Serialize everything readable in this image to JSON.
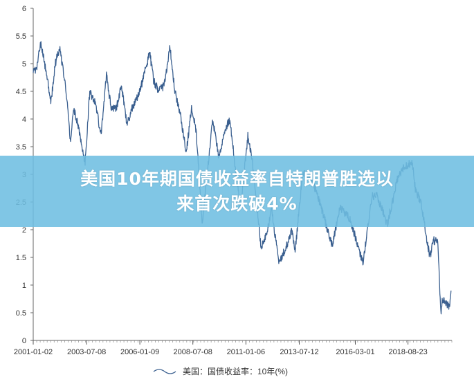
{
  "headline": {
    "line1": "美国10年期国债收益率自特朗普胜选以",
    "line2": "来首次跌破4%"
  },
  "chart_data": {
    "type": "line",
    "title": "",
    "xlabel": "",
    "ylabel": "",
    "ylim": [
      0,
      6
    ],
    "yticks": [
      "0",
      "0.5",
      "1",
      "1.5",
      "2",
      "2.5",
      "3",
      "3.5",
      "4",
      "4.5",
      "5",
      "5.5",
      "6"
    ],
    "xlim": [
      "2001-01-02",
      "2020-09-15"
    ],
    "xticks": [
      "2001-01-02",
      "2003-07-08",
      "2006-01-09",
      "2008-07-08",
      "2011-01-06",
      "2013-07-12",
      "2016-03-01",
      "2018-08-23"
    ],
    "grid": false,
    "legend_position": "bottom",
    "legend": "美国：国债收益率：10年(%)",
    "series": [
      {
        "name": "美国：国债收益率：10年(%)",
        "color": "#3a5f8f",
        "points": [
          [
            "2001-01-02",
            4.9
          ],
          [
            "2001-03-01",
            4.9
          ],
          [
            "2001-05-15",
            5.4
          ],
          [
            "2001-07-01",
            5.1
          ],
          [
            "2001-09-20",
            4.6
          ],
          [
            "2001-11-05",
            4.3
          ],
          [
            "2002-01-15",
            5.0
          ],
          [
            "2002-04-01",
            5.3
          ],
          [
            "2002-06-01",
            4.9
          ],
          [
            "2002-08-01",
            4.4
          ],
          [
            "2002-10-01",
            3.6
          ],
          [
            "2002-12-01",
            4.2
          ],
          [
            "2003-03-01",
            3.8
          ],
          [
            "2003-06-13",
            3.2
          ],
          [
            "2003-09-01",
            4.5
          ],
          [
            "2003-12-01",
            4.3
          ],
          [
            "2004-03-15",
            3.7
          ],
          [
            "2004-06-14",
            4.8
          ],
          [
            "2004-09-01",
            4.2
          ],
          [
            "2004-12-01",
            4.2
          ],
          [
            "2005-03-01",
            4.6
          ],
          [
            "2005-06-01",
            3.9
          ],
          [
            "2005-09-01",
            4.2
          ],
          [
            "2005-12-01",
            4.4
          ],
          [
            "2006-03-01",
            4.7
          ],
          [
            "2006-06-28",
            5.2
          ],
          [
            "2006-09-01",
            4.7
          ],
          [
            "2006-12-01",
            4.5
          ],
          [
            "2007-03-01",
            4.6
          ],
          [
            "2007-06-12",
            5.3
          ],
          [
            "2007-09-01",
            4.5
          ],
          [
            "2007-12-01",
            4.1
          ],
          [
            "2008-03-17",
            3.4
          ],
          [
            "2008-06-15",
            4.2
          ],
          [
            "2008-09-01",
            3.8
          ],
          [
            "2008-12-18",
            2.1
          ],
          [
            "2009-03-01",
            2.9
          ],
          [
            "2009-06-10",
            4.0
          ],
          [
            "2009-10-01",
            3.3
          ],
          [
            "2010-01-01",
            3.8
          ],
          [
            "2010-04-05",
            4.0
          ],
          [
            "2010-08-01",
            2.9
          ],
          [
            "2010-10-08",
            2.4
          ],
          [
            "2011-02-08",
            3.7
          ],
          [
            "2011-05-01",
            3.2
          ],
          [
            "2011-09-22",
            1.7
          ],
          [
            "2012-01-01",
            1.9
          ],
          [
            "2012-03-19",
            2.4
          ],
          [
            "2012-07-24",
            1.4
          ],
          [
            "2012-12-01",
            1.7
          ],
          [
            "2013-03-01",
            2.0
          ],
          [
            "2013-05-01",
            1.6
          ],
          [
            "2013-09-05",
            3.0
          ],
          [
            "2013-12-31",
            3.0
          ],
          [
            "2014-06-01",
            2.6
          ],
          [
            "2015-01-30",
            1.7
          ],
          [
            "2015-06-10",
            2.4
          ],
          [
            "2015-12-01",
            2.2
          ],
          [
            "2016-07-08",
            1.4
          ],
          [
            "2016-12-15",
            2.6
          ],
          [
            "2017-03-13",
            2.6
          ],
          [
            "2017-09-01",
            2.1
          ],
          [
            "2018-02-21",
            2.9
          ],
          [
            "2018-05-17",
            3.1
          ],
          [
            "2018-10-08",
            3.2
          ],
          [
            "2018-11-08",
            3.2
          ],
          [
            "2019-01-01",
            2.7
          ],
          [
            "2019-04-01",
            2.5
          ],
          [
            "2019-09-03",
            1.5
          ],
          [
            "2019-11-01",
            1.8
          ],
          [
            "2020-01-15",
            1.8
          ],
          [
            "2020-03-09",
            0.5
          ],
          [
            "2020-04-01",
            0.7
          ],
          [
            "2020-06-01",
            0.7
          ],
          [
            "2020-08-04",
            0.6
          ],
          [
            "2020-09-01",
            0.9
          ]
        ]
      }
    ]
  }
}
